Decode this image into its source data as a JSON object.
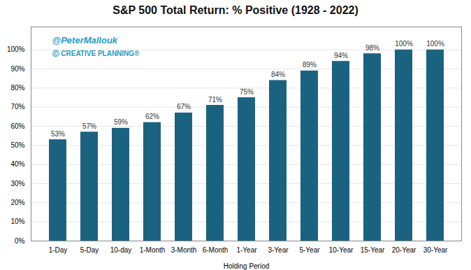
{
  "chart_data": {
    "type": "bar",
    "title": "S&P 500 Total Return: % Positive (1928 - 2022)",
    "xlabel": "Holding Period",
    "categories": [
      "1-Day",
      "5-Day",
      "10-day",
      "1-Month",
      "3-Month",
      "6-Month",
      "1-Year",
      "3-Year",
      "5-Year",
      "10-Year",
      "15-Year",
      "20-Year",
      "30-Year"
    ],
    "values": [
      0.53,
      0.57,
      0.59,
      0.62,
      0.67,
      0.71,
      0.75,
      0.84,
      0.89,
      0.94,
      0.98,
      1.0,
      1.0
    ],
    "value_labels": [
      "53%",
      "57%",
      "59%",
      "62%",
      "67%",
      "71%",
      "75%",
      "84%",
      "89%",
      "94%",
      "98%",
      "100%",
      "100%"
    ],
    "color": "#1b6280",
    "ylim": [
      0,
      1.12
    ],
    "yticks": [
      {
        "value": 0.0,
        "label": "0%"
      },
      {
        "value": 0.1,
        "label": "10%"
      },
      {
        "value": 0.2,
        "label": "20%"
      },
      {
        "value": 0.3,
        "label": "30%"
      },
      {
        "value": 0.4,
        "label": "40%"
      },
      {
        "value": 0.5,
        "label": "50%"
      },
      {
        "value": 0.6,
        "label": "60%"
      },
      {
        "value": 0.7,
        "label": "70%"
      },
      {
        "value": 0.8,
        "label": "80%"
      },
      {
        "value": 0.9,
        "label": "90%"
      },
      {
        "value": 1.0,
        "label": "100%"
      }
    ],
    "grid": true,
    "data_labels": true,
    "annotations": [
      {
        "text": "@PeterMallouk",
        "color": "#2a9abf"
      },
      {
        "text": "Ⓒ",
        "color": "#2a9abf"
      },
      {
        "text": "CREATIVE PLANNING",
        "color": "#2a9abf"
      },
      {
        "text": "®",
        "color": "#2a9abf"
      }
    ]
  }
}
